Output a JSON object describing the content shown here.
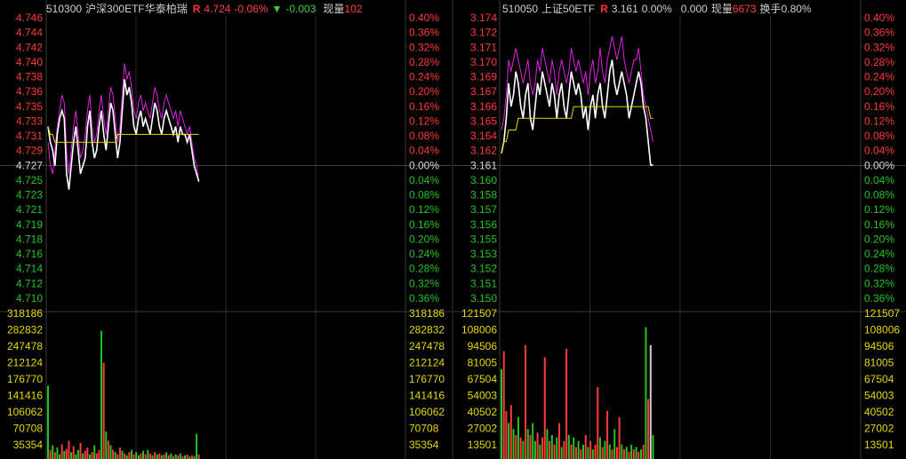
{
  "panels": [
    {
      "header": {
        "code": "510300",
        "name": "沪深300ETF华泰柏瑞",
        "r_flag": "R",
        "price": "4.724",
        "change_pct": "-0.06%",
        "change_arrow": "▼",
        "change": "-0.003",
        "volume_label": "现量",
        "volume_value": "102",
        "turnover_label": "",
        "turnover_value": ""
      },
      "colors": {
        "up": "#ff3a3a",
        "down": "#22c422",
        "price_line": "#ffffff",
        "ratio_line": "#e020e0",
        "avg_line": "#e8d800",
        "volume_axis": "#e8d800"
      },
      "chart_data": {
        "type": "line",
        "title": "",
        "price_ticks": [
          "4.746",
          "4.744",
          "4.742",
          "4.740",
          "4.738",
          "4.736",
          "4.735",
          "4.733",
          "4.731",
          "4.729",
          "4.727",
          "4.725",
          "4.723",
          "4.721",
          "4.719",
          "4.718",
          "4.716",
          "4.714",
          "4.712",
          "4.710"
        ],
        "pct_ticks": [
          "0.40%",
          "0.36%",
          "0.32%",
          "0.28%",
          "0.24%",
          "0.20%",
          "0.16%",
          "0.12%",
          "0.08%",
          "0.04%",
          "0.00%",
          "0.04%",
          "0.08%",
          "0.12%",
          "0.16%",
          "0.20%",
          "0.24%",
          "0.28%",
          "0.32%",
          "0.36%"
        ],
        "volume_ticks": [
          "318186",
          "282832",
          "247478",
          "212124",
          "176770",
          "141416",
          "106062",
          "70708",
          "35354"
        ],
        "ylim_price": [
          4.7092,
          4.7448
        ],
        "ylim_volume": [
          0,
          318186
        ],
        "price": [
          4.731,
          4.729,
          4.728,
          4.726,
          4.73,
          4.732,
          4.733,
          4.732,
          4.725,
          4.723,
          4.726,
          4.729,
          4.731,
          4.728,
          4.725,
          4.726,
          4.727,
          4.731,
          4.733,
          4.729,
          4.727,
          4.728,
          4.731,
          4.733,
          4.73,
          4.728,
          4.731,
          4.734,
          4.733,
          4.73,
          4.727,
          4.729,
          4.733,
          4.737,
          4.735,
          4.736,
          4.734,
          4.731,
          4.73,
          4.732,
          4.733,
          4.731,
          4.732,
          4.731,
          4.73,
          4.732,
          4.734,
          4.733,
          4.731,
          4.73,
          4.732,
          4.733,
          4.732,
          4.731,
          4.73,
          4.731,
          4.729,
          4.731,
          4.73,
          4.73,
          4.729,
          4.73,
          4.728,
          4.726,
          4.725,
          4.724
        ],
        "ratio": [
          4.729,
          4.726,
          4.725,
          4.728,
          4.731,
          4.733,
          4.735,
          4.734,
          4.728,
          4.725,
          4.728,
          4.731,
          4.733,
          4.73,
          4.727,
          4.728,
          4.73,
          4.733,
          4.735,
          4.731,
          4.729,
          4.73,
          4.733,
          4.735,
          4.732,
          4.73,
          4.733,
          4.736,
          4.735,
          4.732,
          4.729,
          4.731,
          4.735,
          4.739,
          4.737,
          4.738,
          4.736,
          4.733,
          4.732,
          4.734,
          4.735,
          4.733,
          4.734,
          4.733,
          4.732,
          4.734,
          4.736,
          4.735,
          4.733,
          4.732,
          4.734,
          4.735,
          4.734,
          4.733,
          4.732,
          4.733,
          4.731,
          4.733,
          4.732,
          4.731,
          4.73,
          4.731,
          4.729,
          4.727,
          4.726,
          4.724
        ],
        "average": [
          4.731,
          4.73,
          4.73,
          4.729,
          4.729,
          4.729,
          4.729,
          4.729,
          4.729,
          4.729,
          4.729,
          4.729,
          4.729,
          4.729,
          4.729,
          4.729,
          4.729,
          4.729,
          4.729,
          4.729,
          4.729,
          4.729,
          4.729,
          4.729,
          4.729,
          4.729,
          4.729,
          4.729,
          4.729,
          4.729,
          4.73,
          4.73,
          4.73,
          4.73,
          4.73,
          4.73,
          4.73,
          4.73,
          4.73,
          4.73,
          4.73,
          4.73,
          4.73,
          4.73,
          4.73,
          4.73,
          4.73,
          4.73,
          4.73,
          4.73,
          4.73,
          4.73,
          4.73,
          4.73,
          4.73,
          4.73,
          4.73,
          4.73,
          4.73,
          4.73,
          4.73,
          4.73,
          4.73,
          4.73,
          4.73,
          4.73
        ],
        "volume": [
          160000,
          20000,
          30000,
          15000,
          25000,
          10000,
          32000,
          18000,
          22000,
          40000,
          15000,
          28000,
          10000,
          20000,
          35000,
          12000,
          18000,
          25000,
          10000,
          15000,
          30000,
          12000,
          20000,
          280000,
          210000,
          60000,
          40000,
          30000,
          20000,
          15000,
          10000,
          25000,
          18000,
          12000,
          8000,
          15000,
          20000,
          10000,
          15000,
          8000,
          12000,
          18000,
          10000,
          20000,
          12000,
          8000,
          15000,
          10000,
          12000,
          8000,
          10000,
          15000,
          8000,
          12000,
          6000,
          10000,
          8000,
          12000,
          6000,
          8000,
          10000,
          5000,
          8000,
          6000,
          55000,
          10000
        ],
        "volume_dir": [
          "d",
          "u",
          "d",
          "u",
          "d",
          "d",
          "u",
          "d",
          "u",
          "u",
          "d",
          "u",
          "d",
          "d",
          "u",
          "d",
          "u",
          "u",
          "d",
          "u",
          "d",
          "u",
          "u",
          "d",
          "u",
          "d",
          "u",
          "d",
          "u",
          "d",
          "u",
          "u",
          "d",
          "u",
          "d",
          "u",
          "d",
          "u",
          "d",
          "d",
          "u",
          "d",
          "u",
          "d",
          "u",
          "d",
          "u",
          "d",
          "u",
          "d",
          "u",
          "d",
          "u",
          "d",
          "u",
          "d",
          "u",
          "d",
          "u",
          "d",
          "u",
          "d",
          "u",
          "d",
          "d",
          "u"
        ]
      }
    },
    {
      "header": {
        "code": "510050",
        "name": "上证50ETF",
        "r_flag": "R",
        "price": "3.161",
        "change_pct": "0.00%",
        "change_arrow": "",
        "change": "0.000",
        "volume_label": "现量",
        "volume_value": "6673",
        "turnover_label": "换手",
        "turnover_value": "0.80%"
      },
      "colors": {
        "up": "#ff3a3a",
        "down": "#22c422",
        "price_line": "#ffffff",
        "ratio_line": "#e020e0",
        "avg_line": "#e8d800",
        "volume_axis": "#e8d800"
      },
      "chart_data": {
        "type": "line",
        "title": "",
        "price_ticks": [
          "3.174",
          "3.172",
          "3.171",
          "3.170",
          "3.169",
          "3.167",
          "3.166",
          "3.165",
          "3.164",
          "3.162",
          "3.161",
          "3.160",
          "3.158",
          "3.157",
          "3.156",
          "3.155",
          "3.153",
          "3.152",
          "3.151",
          "3.150"
        ],
        "pct_ticks": [
          "0.40%",
          "0.36%",
          "0.32%",
          "0.28%",
          "0.24%",
          "0.20%",
          "0.16%",
          "0.12%",
          "0.08%",
          "0.04%",
          "0.00%",
          "0.04%",
          "0.08%",
          "0.12%",
          "0.16%",
          "0.20%",
          "0.24%",
          "0.28%",
          "0.32%",
          "0.36%"
        ],
        "volume_ticks": [
          "121507",
          "108006",
          "94506",
          "81005",
          "67504",
          "54003",
          "40502",
          "27002",
          "13501"
        ],
        "ylim_price": [
          3.1496,
          3.1736
        ],
        "ylim_volume": [
          0,
          121507
        ],
        "price": [
          3.162,
          3.163,
          3.165,
          3.168,
          3.166,
          3.167,
          3.169,
          3.168,
          3.166,
          3.165,
          3.167,
          3.168,
          3.165,
          3.164,
          3.166,
          3.168,
          3.167,
          3.169,
          3.168,
          3.167,
          3.166,
          3.168,
          3.167,
          3.165,
          3.167,
          3.168,
          3.166,
          3.165,
          3.167,
          3.169,
          3.168,
          3.167,
          3.168,
          3.167,
          3.165,
          3.166,
          3.164,
          3.166,
          3.167,
          3.165,
          3.167,
          3.168,
          3.166,
          3.165,
          3.167,
          3.169,
          3.17,
          3.168,
          3.167,
          3.168,
          3.169,
          3.168,
          3.167,
          3.165,
          3.166,
          3.167,
          3.168,
          3.169,
          3.168,
          3.166,
          3.165,
          3.163,
          3.161,
          3.161
        ],
        "ratio": [
          3.164,
          3.165,
          3.167,
          3.17,
          3.169,
          3.17,
          3.171,
          3.17,
          3.169,
          3.168,
          3.169,
          3.17,
          3.168,
          3.167,
          3.168,
          3.17,
          3.169,
          3.171,
          3.17,
          3.169,
          3.168,
          3.17,
          3.169,
          3.167,
          3.169,
          3.17,
          3.169,
          3.168,
          3.169,
          3.171,
          3.17,
          3.169,
          3.17,
          3.169,
          3.168,
          3.169,
          3.167,
          3.169,
          3.17,
          3.168,
          3.169,
          3.171,
          3.169,
          3.168,
          3.17,
          3.171,
          3.172,
          3.171,
          3.17,
          3.171,
          3.172,
          3.17,
          3.169,
          3.168,
          3.169,
          3.17,
          3.17,
          3.171,
          3.169,
          3.167,
          3.166,
          3.165,
          3.164,
          3.163
        ],
        "average": [
          3.162,
          3.163,
          3.163,
          3.164,
          3.164,
          3.164,
          3.164,
          3.165,
          3.165,
          3.165,
          3.165,
          3.165,
          3.165,
          3.165,
          3.165,
          3.165,
          3.165,
          3.165,
          3.165,
          3.165,
          3.165,
          3.165,
          3.165,
          3.165,
          3.165,
          3.165,
          3.165,
          3.165,
          3.165,
          3.165,
          3.166,
          3.166,
          3.166,
          3.166,
          3.166,
          3.166,
          3.166,
          3.166,
          3.166,
          3.166,
          3.166,
          3.166,
          3.166,
          3.166,
          3.166,
          3.166,
          3.166,
          3.166,
          3.166,
          3.166,
          3.166,
          3.166,
          3.166,
          3.166,
          3.166,
          3.166,
          3.166,
          3.166,
          3.166,
          3.166,
          3.166,
          3.166,
          3.165,
          3.165
        ],
        "volume": [
          75000,
          90000,
          40000,
          30000,
          45000,
          25000,
          20000,
          35000,
          18000,
          15000,
          95000,
          25000,
          20000,
          30000,
          15000,
          22000,
          12000,
          18000,
          85000,
          25000,
          15000,
          20000,
          12000,
          18000,
          30000,
          10000,
          15000,
          92000,
          20000,
          12000,
          18000,
          10000,
          15000,
          8000,
          12000,
          20000,
          10000,
          15000,
          8000,
          12000,
          60000,
          18000,
          10000,
          15000,
          40000,
          12000,
          8000,
          25000,
          10000,
          35000,
          12000,
          8000,
          10000,
          6000,
          12000,
          8000,
          10000,
          6000,
          8000,
          12000,
          110000,
          50000,
          95000,
          20000
        ],
        "volume_dir": [
          "d",
          "u",
          "u",
          "d",
          "u",
          "d",
          "u",
          "d",
          "u",
          "d",
          "u",
          "d",
          "u",
          "d",
          "d",
          "u",
          "d",
          "u",
          "u",
          "d",
          "u",
          "d",
          "u",
          "d",
          "u",
          "d",
          "u",
          "u",
          "d",
          "u",
          "d",
          "u",
          "d",
          "u",
          "d",
          "u",
          "d",
          "u",
          "d",
          "u",
          "u",
          "d",
          "u",
          "d",
          "u",
          "d",
          "u",
          "d",
          "u",
          "u",
          "d",
          "u",
          "d",
          "u",
          "d",
          "u",
          "d",
          "u",
          "d",
          "u",
          "d",
          "u",
          "n",
          "d"
        ]
      }
    }
  ]
}
